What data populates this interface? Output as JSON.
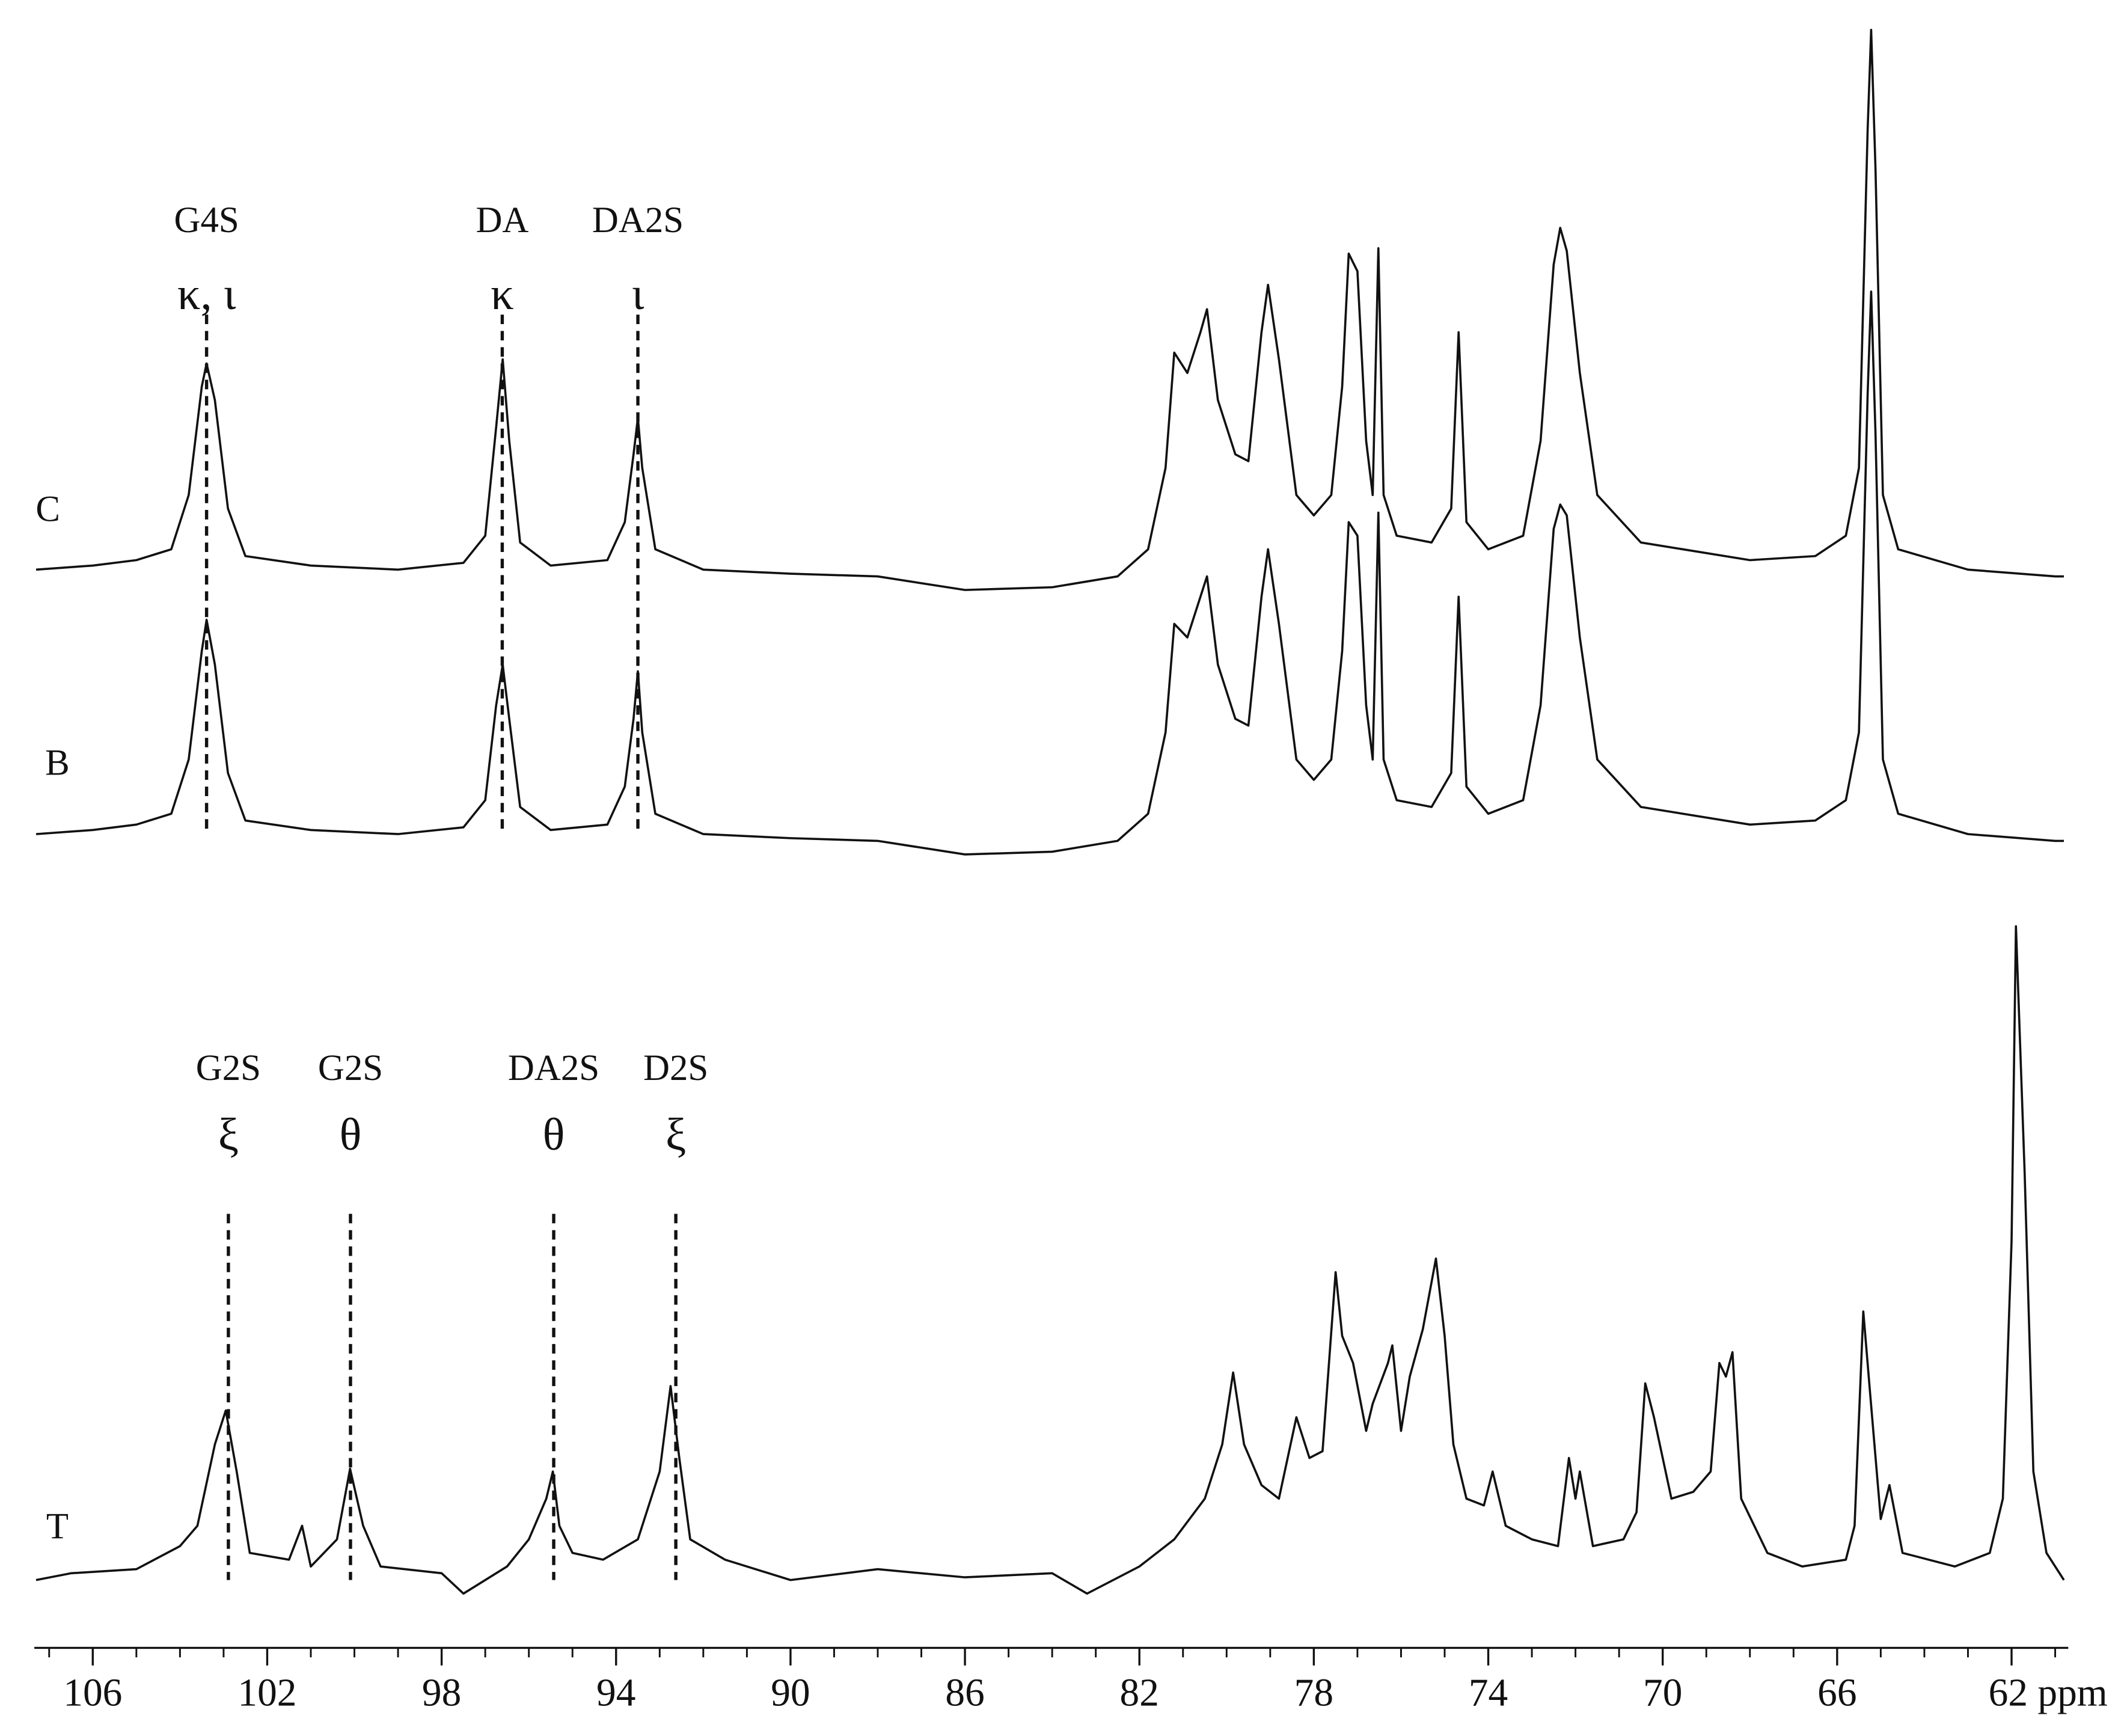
{
  "chart_data": [
    {
      "type": "line",
      "name": "C",
      "color": "#111111",
      "xlim": [
        107.34,
        60.7
      ],
      "ylim": [
        -20,
        420
      ],
      "x": [
        107.3,
        106,
        105,
        104.2,
        103.8,
        103.5,
        103.39,
        103.2,
        102.9,
        102.5,
        101,
        99,
        97.5,
        97,
        96.75,
        96.6,
        96.45,
        96.2,
        95.5,
        94.2,
        93.8,
        93.6,
        93.5,
        93.4,
        93.1,
        92,
        90,
        88,
        86,
        84,
        82.5,
        81.8,
        81.4,
        81.2,
        80.9,
        80.6,
        80.45,
        80.2,
        79.8,
        79.5,
        79.2,
        79.05,
        78.8,
        78.4,
        78,
        77.6,
        77.35,
        77.2,
        77,
        76.8,
        76.65,
        76.52,
        76.4,
        76.1,
        75.3,
        74.85,
        74.68,
        74.5,
        74,
        73.2,
        72.8,
        72.5,
        72.35,
        72.2,
        71.9,
        71.5,
        70.5,
        68,
        66.5,
        65.8,
        65.5,
        65.3,
        65.22,
        65.12,
        64.95,
        64.6,
        63,
        61,
        60.8
      ],
      "values": [
        5,
        8,
        12,
        20,
        60,
        140,
        157,
        130,
        50,
        15,
        8,
        5,
        10,
        30,
        110,
        160,
        100,
        25,
        8,
        12,
        40,
        90,
        117,
        80,
        20,
        5,
        2,
        0,
        -10,
        -8,
        0,
        20,
        80,
        165,
        150,
        180,
        197,
        130,
        90,
        85,
        180,
        215,
        160,
        60,
        45,
        60,
        140,
        238,
        225,
        100,
        60,
        242,
        60,
        30,
        25,
        50,
        180,
        40,
        20,
        30,
        100,
        230,
        257,
        240,
        150,
        60,
        25,
        12,
        15,
        30,
        80,
        330,
        403,
        300,
        60,
        20,
        5,
        0,
        0
      ],
      "annotations": [
        {
          "x": 103.39,
          "label": "G4S",
          "symbol": "κ, ι"
        },
        {
          "x": 96.61,
          "label": "DA",
          "symbol": "κ"
        },
        {
          "x": 93.5,
          "label": "DA2S",
          "symbol": "ι"
        }
      ]
    },
    {
      "type": "line",
      "name": "B",
      "color": "#111111",
      "xlim": [
        107.34,
        60.7
      ],
      "ylim": [
        -20,
        420
      ],
      "x": [
        107.3,
        106,
        105,
        104.2,
        103.8,
        103.5,
        103.39,
        103.2,
        102.9,
        102.5,
        101,
        99,
        97.5,
        97,
        96.75,
        96.6,
        96.45,
        96.2,
        95.5,
        94.2,
        93.8,
        93.6,
        93.5,
        93.4,
        93.1,
        92,
        90,
        88,
        86,
        84,
        82.5,
        81.8,
        81.4,
        81.2,
        80.9,
        80.6,
        80.45,
        80.2,
        79.8,
        79.5,
        79.2,
        79.05,
        78.8,
        78.4,
        78,
        77.6,
        77.35,
        77.2,
        77,
        76.8,
        76.65,
        76.52,
        76.4,
        76.1,
        75.3,
        74.85,
        74.68,
        74.5,
        74,
        73.2,
        72.8,
        72.5,
        72.35,
        72.2,
        71.9,
        71.5,
        70.5,
        68,
        66.5,
        65.8,
        65.5,
        65.3,
        65.22,
        65.12,
        64.95,
        64.6,
        63,
        61,
        60.8
      ],
      "values": [
        5,
        8,
        12,
        20,
        60,
        140,
        163,
        130,
        50,
        15,
        8,
        5,
        10,
        30,
        100,
        130,
        90,
        25,
        8,
        12,
        40,
        90,
        125,
        80,
        20,
        5,
        2,
        0,
        -10,
        -8,
        0,
        20,
        80,
        160,
        150,
        180,
        195,
        130,
        90,
        85,
        180,
        215,
        160,
        60,
        45,
        60,
        140,
        235,
        225,
        100,
        60,
        242,
        60,
        30,
        25,
        50,
        180,
        40,
        20,
        30,
        100,
        230,
        248,
        240,
        150,
        60,
        25,
        12,
        15,
        30,
        80,
        330,
        405,
        300,
        60,
        20,
        5,
        0,
        0
      ]
    },
    {
      "type": "line",
      "name": "T",
      "color": "#111111",
      "xlim": [
        107.34,
        60.7
      ],
      "ylim": [
        -20,
        500
      ],
      "x": [
        107.3,
        106.5,
        105,
        104,
        103.6,
        103.2,
        102.95,
        102.7,
        102.4,
        101.5,
        101.2,
        101,
        100.4,
        100.1,
        99.8,
        99.4,
        98,
        97.5,
        96.5,
        96,
        95.6,
        95.45,
        95.3,
        95,
        94.3,
        93.5,
        93,
        92.75,
        92.55,
        92.3,
        91.5,
        90,
        88,
        86,
        84,
        83.2,
        82,
        81.2,
        80.5,
        80.1,
        79.85,
        79.6,
        79.2,
        78.8,
        78.4,
        78.1,
        77.8,
        77.5,
        77.35,
        77.1,
        76.8,
        76.65,
        76.3,
        76.2,
        76,
        75.8,
        75.5,
        75.2,
        75,
        74.8,
        74.5,
        74.1,
        73.9,
        73.6,
        73,
        72.4,
        72.15,
        72,
        71.9,
        71.6,
        70.9,
        70.6,
        70.4,
        70.2,
        69.8,
        69.3,
        68.9,
        68.7,
        68.55,
        68.4,
        68.2,
        67.6,
        66.8,
        65.8,
        65.6,
        65.4,
        65.25,
        65,
        64.8,
        64.5,
        63.3,
        62.5,
        62.2,
        62,
        61.9,
        61.7,
        61.5,
        61.2,
        60.8
      ],
      "values": [
        0,
        5,
        8,
        25,
        40,
        100,
        125,
        80,
        20,
        15,
        40,
        10,
        30,
        82,
        40,
        10,
        5,
        -10,
        10,
        30,
        60,
        80,
        40,
        20,
        15,
        30,
        80,
        143,
        90,
        30,
        15,
        0,
        8,
        2,
        5,
        -10,
        10,
        30,
        60,
        100,
        153,
        100,
        70,
        60,
        120,
        90,
        95,
        227,
        180,
        160,
        110,
        130,
        160,
        173,
        110,
        150,
        185,
        237,
        180,
        100,
        60,
        55,
        80,
        40,
        30,
        25,
        90,
        60,
        80,
        25,
        30,
        50,
        145,
        120,
        60,
        65,
        80,
        160,
        150,
        168,
        60,
        20,
        10,
        15,
        40,
        198,
        140,
        45,
        70,
        20,
        10,
        20,
        60,
        250,
        482,
        300,
        80,
        20,
        0
      ],
      "annotations": [
        {
          "x": 102.89,
          "label": "G2S",
          "symbol": "ξ"
        },
        {
          "x": 100.09,
          "label": "G2S",
          "symbol": "θ"
        },
        {
          "x": 95.43,
          "label": "DA2S",
          "symbol": "θ"
        },
        {
          "x": 92.63,
          "label": "D2S",
          "symbol": "ξ"
        }
      ],
      "xticks": [
        106,
        102,
        98,
        94,
        90,
        86,
        82,
        78,
        74,
        70,
        66,
        {
          "value": 62,
          "label": "62 ppm"
        }
      ],
      "xticks_minor": [
        107,
        105,
        104,
        103,
        101,
        100,
        99,
        97,
        96,
        95,
        93,
        92,
        91,
        89,
        88,
        87,
        85,
        84,
        83,
        81,
        80,
        79,
        77,
        76,
        75,
        73,
        72,
        71,
        69,
        68,
        67,
        65,
        64,
        63,
        61
      ]
    }
  ]
}
